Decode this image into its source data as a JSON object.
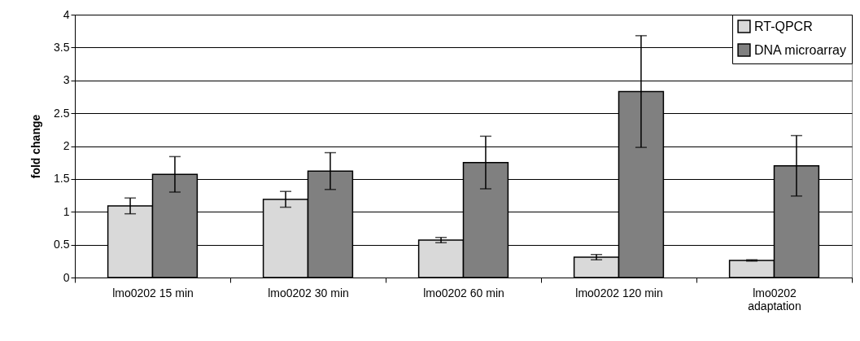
{
  "chart_data": {
    "type": "bar",
    "ylabel": "fold change",
    "categories": [
      "lmo0202 15 min",
      "lmo0202 30 min",
      "lmo0202 60 min",
      "lmo0202 120 min",
      "lmo0202 adaptation"
    ],
    "series": [
      {
        "name": "RT-QPCR",
        "color": "#d9d9d9",
        "values": [
          1.09,
          1.19,
          0.57,
          0.31,
          0.26
        ],
        "errors": [
          0.12,
          0.12,
          0.04,
          0.04,
          0.01
        ]
      },
      {
        "name": "DNA microarray",
        "color": "#808080",
        "values": [
          1.57,
          1.62,
          1.75,
          2.83,
          1.7
        ],
        "errors": [
          0.27,
          0.28,
          0.4,
          0.85,
          0.46
        ]
      }
    ],
    "ylim": [
      0,
      4
    ],
    "yticks": [
      0,
      0.5,
      1,
      1.5,
      2,
      2.5,
      3,
      3.5,
      4
    ],
    "grid": "y",
    "legend": "top right"
  }
}
